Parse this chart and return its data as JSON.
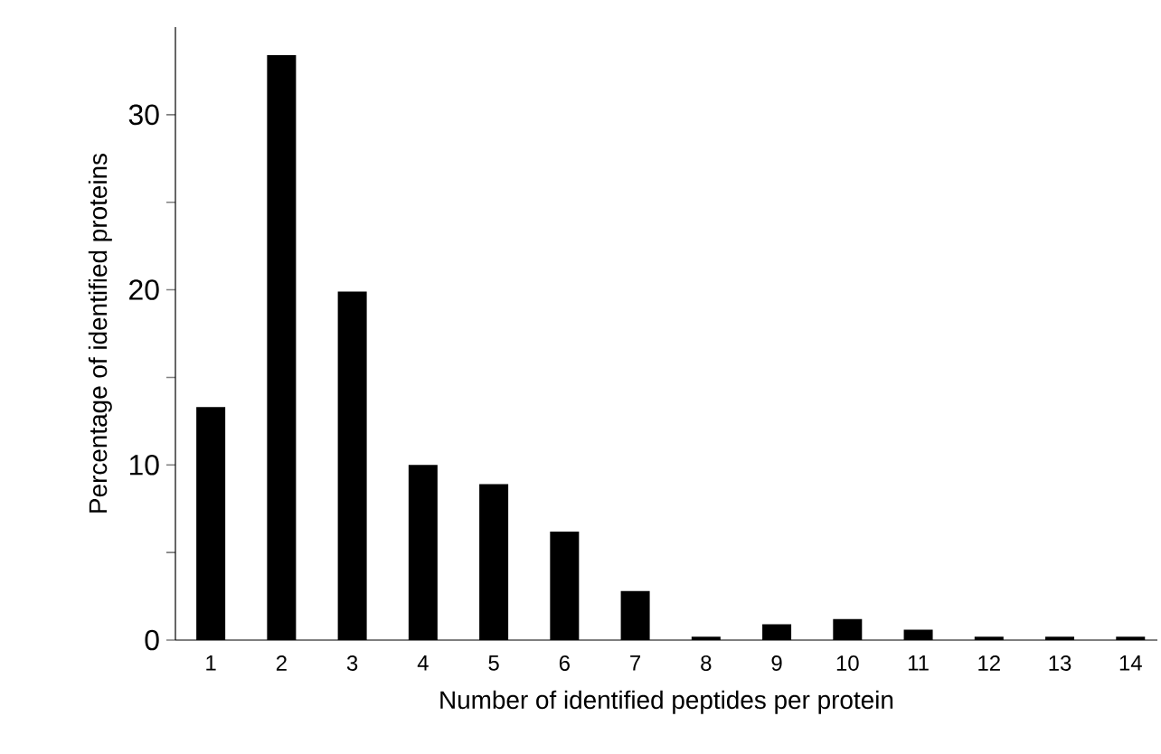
{
  "chart_data": {
    "type": "bar",
    "xlabel": "Number of identified peptides per protein",
    "ylabel": "Percentage of identified proteins",
    "categories": [
      "1",
      "2",
      "3",
      "4",
      "5",
      "6",
      "7",
      "8",
      "9",
      "10",
      "11",
      "12",
      "13",
      "14"
    ],
    "values": [
      13.3,
      33.4,
      19.9,
      10.0,
      8.9,
      6.2,
      2.8,
      0.2,
      0.9,
      1.2,
      0.6,
      0.2,
      0.2,
      0.2
    ],
    "color": "#000000",
    "ylim": [
      0,
      35
    ],
    "yticks": [
      0,
      {
        "value": 5,
        "label": null
      },
      10,
      {
        "value": 15,
        "label": null
      },
      20,
      {
        "value": 25,
        "label": null
      },
      30
    ],
    "grid": false
  }
}
